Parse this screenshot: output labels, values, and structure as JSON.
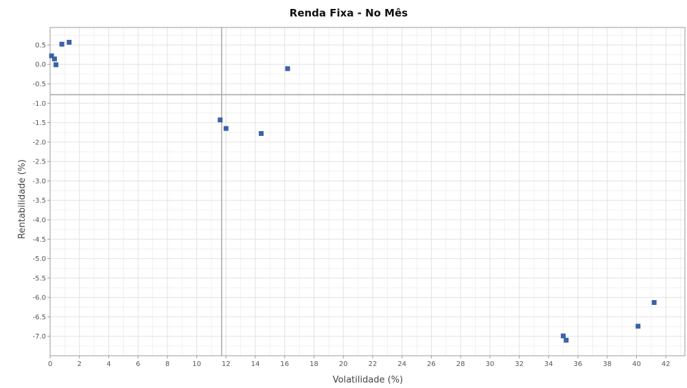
{
  "chart_data": {
    "type": "scatter",
    "title": "Renda Fixa - No Mês",
    "xlabel": "Volatilidade (%)",
    "ylabel": "Rentabilidade (%)",
    "xlim": [
      0,
      43.3
    ],
    "ylim": [
      -7.5,
      0.95
    ],
    "xticks": [
      0,
      2,
      4,
      6,
      8,
      10,
      12,
      14,
      16,
      18,
      20,
      22,
      24,
      26,
      28,
      30,
      32,
      34,
      36,
      38,
      40,
      42
    ],
    "yticks": [
      0.5,
      0.0,
      -0.5,
      -1.0,
      -1.5,
      -2.0,
      -2.5,
      -3.0,
      -3.5,
      -4.0,
      -4.5,
      -5.0,
      -5.5,
      -6.0,
      -6.5,
      -7.0
    ],
    "xtick_labels": [
      "0",
      "2",
      "4",
      "6",
      "8",
      "10",
      "12",
      "14",
      "16",
      "18",
      "20",
      "22",
      "24",
      "26",
      "28",
      "30",
      "32",
      "34",
      "36",
      "38",
      "40",
      "42"
    ],
    "ytick_labels": [
      "0.5",
      "0.0",
      "-0.5",
      "-1.0",
      "-1.5",
      "-2.0",
      "-2.5",
      "-3.0",
      "-3.5",
      "-4.0",
      "-4.5",
      "-5.0",
      "-5.5",
      "-6.0",
      "-6.5",
      "-7.0"
    ],
    "grid": true,
    "crosshair": {
      "x": 11.7,
      "y": -0.78
    },
    "marker_color": "#3a62a7",
    "points": [
      {
        "x": 0.1,
        "y": 0.22
      },
      {
        "x": 0.3,
        "y": 0.14
      },
      {
        "x": 0.4,
        "y": -0.01
      },
      {
        "x": 0.8,
        "y": 0.52
      },
      {
        "x": 1.3,
        "y": 0.57
      },
      {
        "x": 16.2,
        "y": -0.11
      },
      {
        "x": 11.6,
        "y": -1.43
      },
      {
        "x": 12.0,
        "y": -1.65
      },
      {
        "x": 14.4,
        "y": -1.78
      },
      {
        "x": 35.0,
        "y": -6.99
      },
      {
        "x": 35.2,
        "y": -7.1
      },
      {
        "x": 40.1,
        "y": -6.74
      },
      {
        "x": 41.2,
        "y": -6.13
      }
    ]
  }
}
